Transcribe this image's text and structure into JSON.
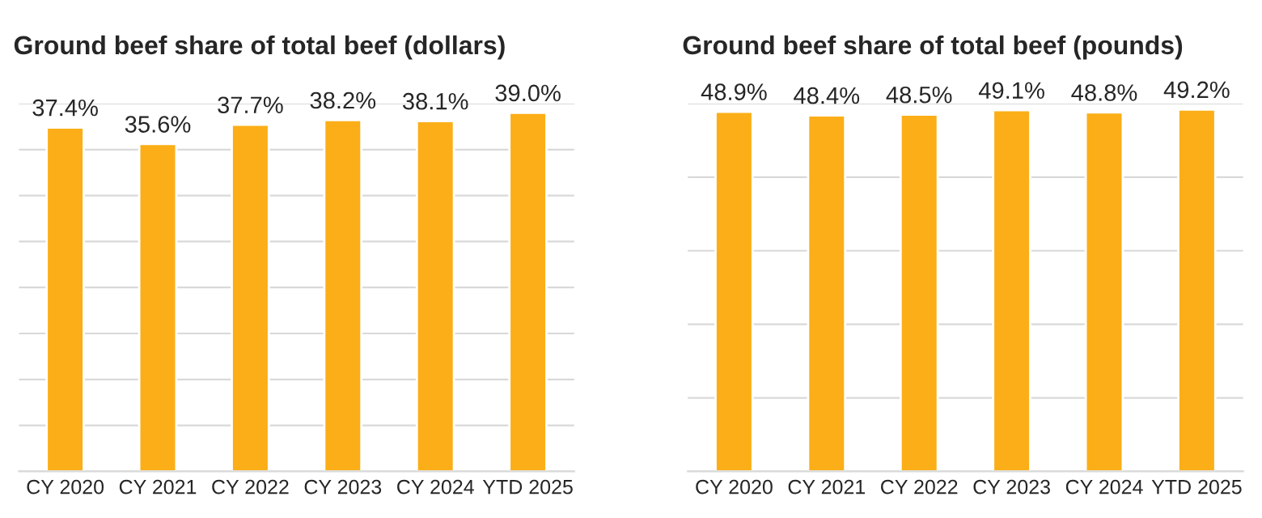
{
  "chart_data": [
    {
      "type": "bar",
      "title": "Ground beef share of total beef (dollars)",
      "categories": [
        "CY 2020",
        "CY 2021",
        "CY 2022",
        "CY 2023",
        "CY 2024",
        "YTD 2025"
      ],
      "values": [
        37.4,
        35.6,
        37.7,
        38.2,
        38.1,
        39.0
      ],
      "value_labels": [
        "37.4%",
        "35.6%",
        "37.7%",
        "38.2%",
        "38.1%",
        "39.0%"
      ],
      "color": "#fbae17",
      "ylim": [
        0,
        40
      ],
      "yticks": [
        {
          "value": 0,
          "label": null
        },
        {
          "value": 5,
          "label": null
        },
        {
          "value": 10,
          "label": null
        },
        {
          "value": 15,
          "label": null
        },
        {
          "value": 20,
          "label": null
        },
        {
          "value": 25,
          "label": null
        },
        {
          "value": 30,
          "label": null
        },
        {
          "value": 35,
          "label": null
        },
        {
          "value": 40,
          "label": null
        }
      ],
      "grid": "y",
      "tick_labels": "x"
    },
    {
      "type": "bar",
      "title": "Ground beef share of total beef (pounds)",
      "categories": [
        "CY 2020",
        "CY 2021",
        "CY 2022",
        "CY 2023",
        "CY 2024",
        "YTD 2025"
      ],
      "values": [
        48.9,
        48.4,
        48.5,
        49.1,
        48.8,
        49.2
      ],
      "value_labels": [
        "48.9%",
        "48.4%",
        "48.5%",
        "49.1%",
        "48.8%",
        "49.2%"
      ],
      "color": "#fbae17",
      "ylim": [
        0,
        50
      ],
      "yticks": [
        {
          "value": 0,
          "label": null
        },
        {
          "value": 10,
          "label": null
        },
        {
          "value": 20,
          "label": null
        },
        {
          "value": 30,
          "label": null
        },
        {
          "value": 40,
          "label": null
        },
        {
          "value": 50,
          "label": null
        }
      ],
      "grid": "y",
      "tick_labels": "x"
    }
  ]
}
